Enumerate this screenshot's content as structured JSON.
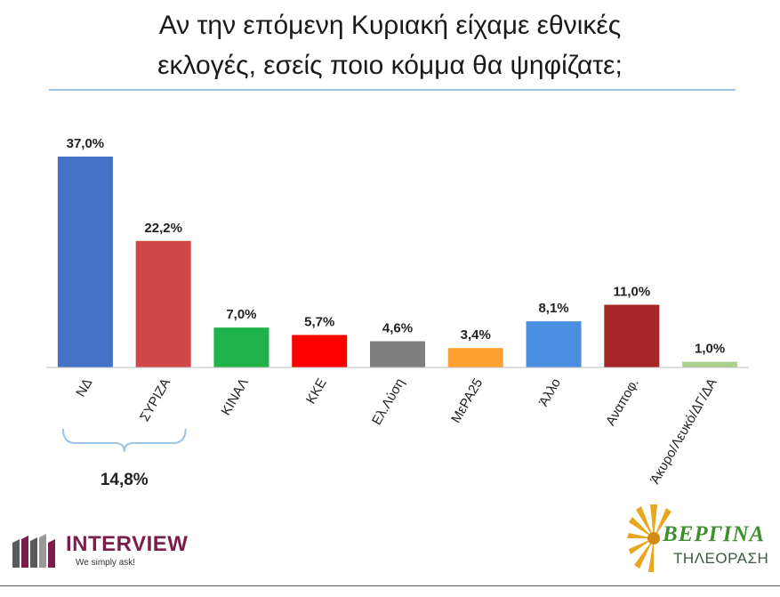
{
  "title_line1": "Αν την επόμενη Κυριακή είχαμε εθνικές",
  "title_line2": "εκλογές, εσείς ποιο κόμμα θα ψηφίζατε;",
  "chart_data": {
    "type": "bar",
    "categories": [
      "ΝΔ",
      "ΣΥΡΙΖΑ",
      "ΚΙΝΑΛ",
      "ΚΚΕ",
      "Ελ.Λύση",
      "ΜεΡΑ25",
      "Άλλο",
      "Αναποφ.",
      "Άκυρο/Λευκό/ΔΓ/ΔΑ"
    ],
    "values": [
      37.0,
      22.2,
      7.0,
      5.7,
      4.6,
      3.4,
      8.1,
      11.0,
      1.0
    ],
    "data_labels": [
      "37,0%",
      "22,2%",
      "7,0%",
      "5,7%",
      "4,6%",
      "3,4%",
      "8,1%",
      "11,0%",
      "1,0%"
    ],
    "colors": [
      "#4472c4",
      "#d04848",
      "#1fb24a",
      "#ff0000",
      "#7f7f7f",
      "#ffa030",
      "#4a8fdf",
      "#a52626",
      "#a9d18e"
    ],
    "ylim": [
      0,
      37.0
    ],
    "grid": false,
    "legend": "none",
    "annotation": {
      "text": "14,8%",
      "spans": [
        "ΝΔ",
        "ΣΥΡΙΖΑ"
      ],
      "value": 14.8
    }
  },
  "logos": {
    "interview_name": "INTERVIEW",
    "interview_tagline": "We simply ask!",
    "interview_color": "#7b1f4a",
    "vergina_name": "ΒΕΡΓΙΝΑ",
    "vergina_sub": "ΤΗΛΕΟΡΑΣΗ",
    "vergina_color": "#3f8f2f"
  }
}
